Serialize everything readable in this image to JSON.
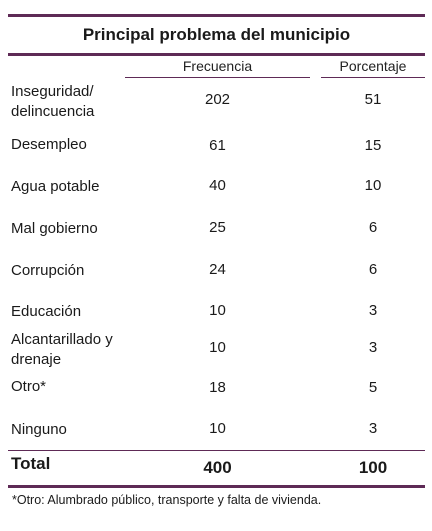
{
  "table": {
    "title": "Principal problema del municipio",
    "columns": {
      "frequency": "Frecuencia",
      "percentage": "Porcentaje"
    },
    "rows": [
      {
        "label": "Inseguridad/ delincuencia",
        "frequency": "202",
        "percentage": "51"
      },
      {
        "label": "Desempleo",
        "frequency": "61",
        "percentage": "15"
      },
      {
        "label": "Agua potable",
        "frequency": "40",
        "percentage": "10"
      },
      {
        "label": "Mal gobierno",
        "frequency": "25",
        "percentage": "6"
      },
      {
        "label": "Corrupción",
        "frequency": "24",
        "percentage": "6"
      },
      {
        "label": "Educación",
        "frequency": "10",
        "percentage": "3"
      },
      {
        "label": "Alcantarillado y drenaje",
        "frequency": "10",
        "percentage": "3"
      },
      {
        "label": "Otro*",
        "frequency": "18",
        "percentage": "5"
      },
      {
        "label": "Ninguno",
        "frequency": "10",
        "percentage": "3"
      }
    ],
    "total": {
      "label": "Total",
      "frequency": "400",
      "percentage": "100"
    },
    "footnote": "*Otro: Alumbrado público, transporte y falta de vivienda."
  },
  "colors": {
    "rule": "#5e2a56",
    "text": "#1a1a1a"
  }
}
